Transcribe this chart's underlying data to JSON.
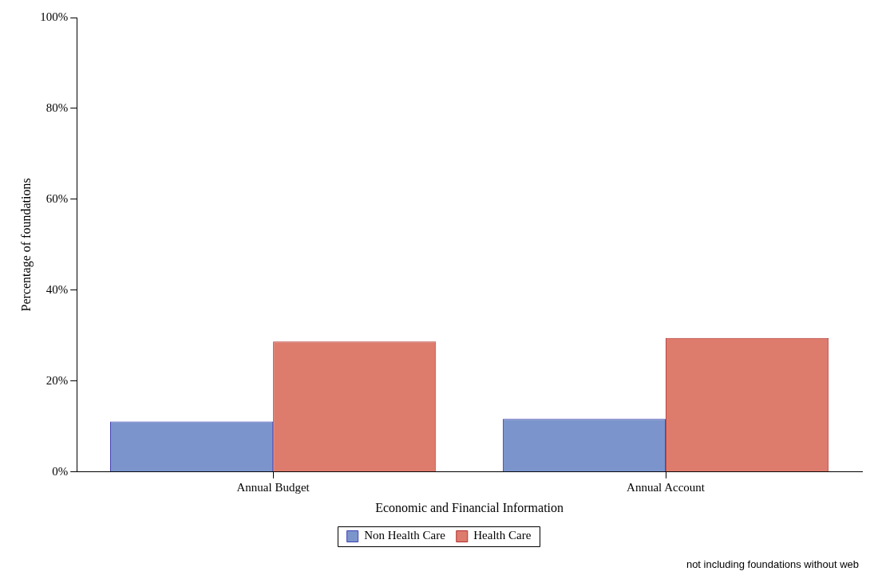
{
  "chart_data": {
    "type": "bar",
    "xlabel": "Economic and Financial Information",
    "ylabel": "Percentage of foundations",
    "categories": [
      "Annual Budget",
      "Annual Account"
    ],
    "series": [
      {
        "name": "Non Health Care",
        "color": "#7b95cc",
        "values": [
          11.1,
          11.7
        ]
      },
      {
        "name": "Health Care",
        "color": "#dd7b6c",
        "values": [
          28.7,
          29.5
        ]
      }
    ],
    "ylim": [
      0,
      100
    ],
    "yticks": [
      {
        "value": 0,
        "label": "0%"
      },
      {
        "value": 20,
        "label": "20%"
      },
      {
        "value": 40,
        "label": "40%"
      },
      {
        "value": 60,
        "label": "60%"
      },
      {
        "value": 80,
        "label": "80%"
      },
      {
        "value": 100,
        "label": "100%"
      }
    ],
    "grid": false,
    "legend": "bottom",
    "annotations": [
      "not including foundations without web"
    ]
  }
}
